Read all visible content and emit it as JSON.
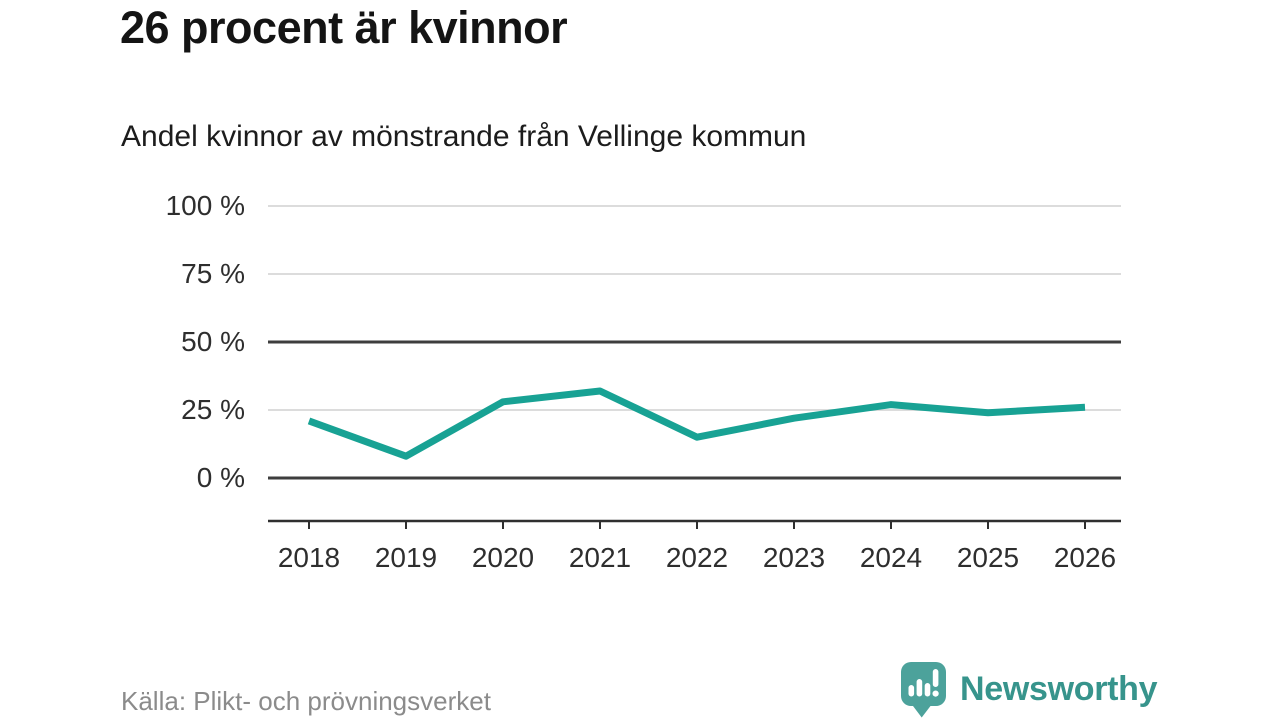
{
  "page": {
    "title": "26 procent är kvinnor",
    "subtitle": "Andel kvinnor av mönstrande från Vellinge kommun",
    "source": "Källa: Plikt- och prövningsverket"
  },
  "branding": {
    "logo_text": "Newsworthy",
    "logo_icon": "bar-chart-speech-bubble-icon",
    "logo_text_color": "#37948c",
    "logo_icon_color": "#4ca29b"
  },
  "chart_data": {
    "type": "line",
    "title": "26 procent är kvinnor",
    "subtitle": "Andel kvinnor av mönstrande från Vellinge kommun",
    "x": [
      "2018",
      "2019",
      "2020",
      "2021",
      "2022",
      "2023",
      "2024",
      "2025",
      "2026"
    ],
    "series": [
      {
        "name": "Andel kvinnor av mönstrande",
        "values": [
          21,
          8,
          28,
          32,
          15,
          22,
          27,
          24,
          26
        ]
      }
    ],
    "xlabel": "",
    "ylabel": "",
    "ylim": [
      0,
      100
    ],
    "yticks": [
      0,
      25,
      50,
      75,
      100
    ],
    "ytick_format": "{v} %",
    "grid": "horizontal",
    "emphasized_gridlines": [
      0,
      50
    ],
    "legend": "none",
    "line_color": "#18a294",
    "light_grid_color": "#dcdcdc",
    "dark_grid_color": "#3e3e3e",
    "axis_color": "#2f2f2f",
    "unit": "%"
  }
}
